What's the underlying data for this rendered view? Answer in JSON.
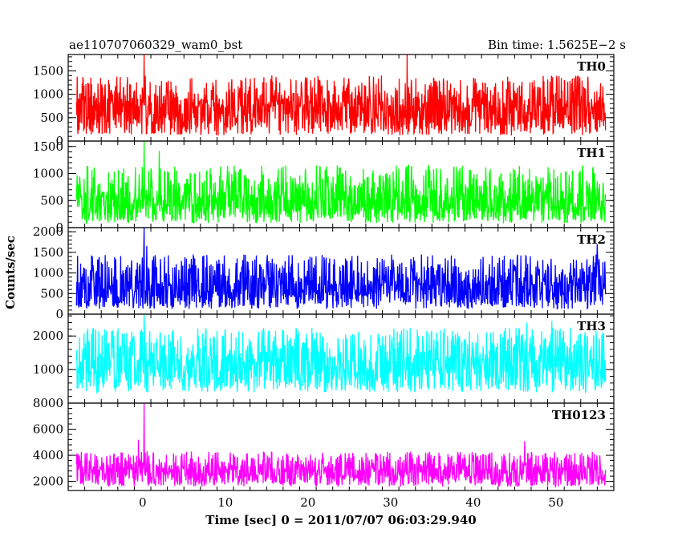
{
  "header": {
    "title": "ae110707060329_wam0_bst",
    "bin_time": "Bin time: 1.5625E−2 s"
  },
  "xlabel": "Time [sec] 0 = 2011/07/07 06:03:29.940",
  "ylabel": "Counts/sec",
  "chart_data": {
    "type": "line",
    "title": "ae110707060329_wam0_bst",
    "subtitle": "Bin time: 1.5625E−2 s",
    "xlabel": "Time [sec] 0 = 2011/07/07 06:03:29.940",
    "ylabel": "Counts/sec",
    "xlim": [
      -9,
      57
    ],
    "xticks": [
      0,
      10,
      20,
      30,
      40,
      50
    ],
    "x_data_range": [
      -8,
      56
    ],
    "grid": false,
    "legend": "none",
    "panels": [
      {
        "name": "TH0",
        "color": "#ff0000",
        "ylim": [
          0,
          1850
        ],
        "yticks": [
          0,
          500,
          1000,
          1500
        ],
        "baseline": 120,
        "mean": 720,
        "peak": 1400,
        "spike_max": 1850,
        "spikes": [
          {
            "x": 0.2,
            "y": 1850
          },
          {
            "x": 32.0,
            "y": 1850
          }
        ]
      },
      {
        "name": "TH1",
        "color": "#00ff00",
        "ylim": [
          0,
          1600
        ],
        "yticks": [
          0,
          500,
          1000,
          1500
        ],
        "baseline": 80,
        "mean": 500,
        "peak": 1150,
        "spike_max": 1600,
        "spikes": [
          {
            "x": 0.2,
            "y": 1600
          },
          {
            "x": 2.0,
            "y": 1420
          }
        ]
      },
      {
        "name": "TH2",
        "color": "#0000ff",
        "ylim": [
          0,
          2100
        ],
        "yticks": [
          0,
          500,
          1000,
          1500,
          2000
        ],
        "baseline": 130,
        "mean": 680,
        "peak": 1450,
        "spike_max": 2100,
        "spikes": [
          {
            "x": 0.2,
            "y": 2100
          },
          {
            "x": 0.5,
            "y": 1650
          },
          {
            "x": 55.0,
            "y": 1700
          }
        ]
      },
      {
        "name": "TH3",
        "color": "#00ffff",
        "ylim": [
          0,
          2650
        ],
        "yticks": [
          1000,
          2000
        ],
        "baseline": 320,
        "mean": 1220,
        "peak": 2250,
        "spike_max": 2650,
        "spikes": [
          {
            "x": 0.2,
            "y": 2650
          },
          {
            "x": 46.5,
            "y": 2400
          },
          {
            "x": 49.5,
            "y": 2450
          }
        ]
      },
      {
        "name": "TH0123",
        "color": "#ff00ff",
        "ylim": [
          1300,
          8000
        ],
        "yticks": [
          2000,
          4000,
          6000,
          8000
        ],
        "baseline": 1600,
        "mean": 2850,
        "peak": 4300,
        "spike_max": 8000,
        "spikes": [
          {
            "x": -0.5,
            "y": 5200
          },
          {
            "x": 0.2,
            "y": 8000
          },
          {
            "x": 46.2,
            "y": 5100
          }
        ]
      }
    ]
  }
}
